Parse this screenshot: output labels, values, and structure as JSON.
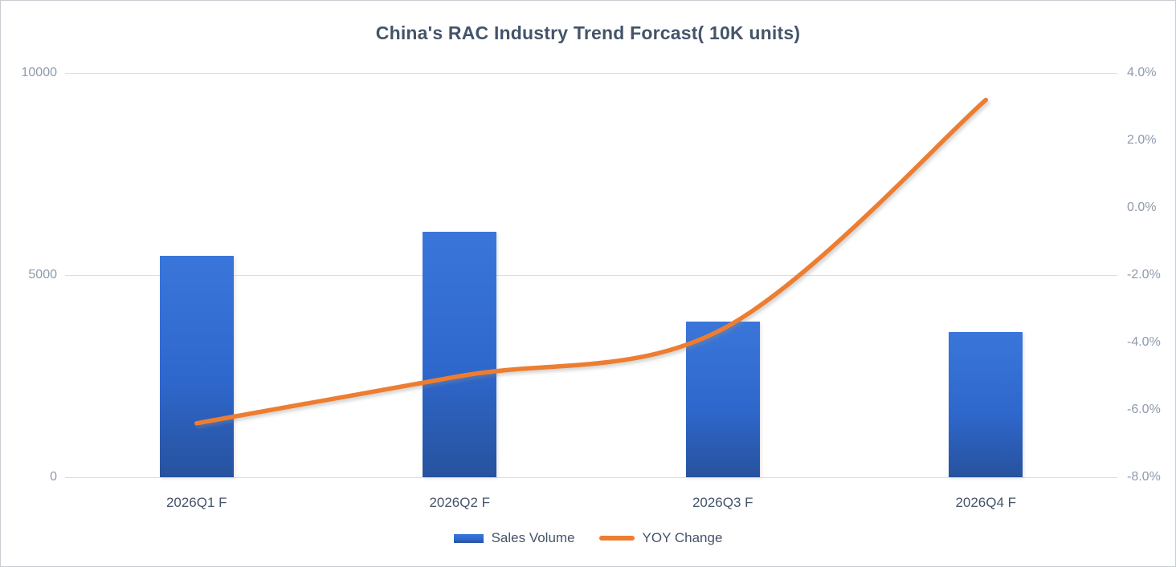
{
  "title": "China's RAC Industry Trend Forcast( 10K units)",
  "chart_data": {
    "type": "bar",
    "subtype": "combo-bar-line-dual-axis",
    "title": "China's RAC Industry Trend Forcast( 10K units)",
    "categories": [
      "2026Q1 F",
      "2026Q2 F",
      "2026Q3 F",
      "2026Q4 F"
    ],
    "series": [
      {
        "name": "Sales Volume",
        "type": "bar",
        "axis": "left",
        "unit": "10K units",
        "values": [
          5480,
          6070,
          3850,
          3590
        ],
        "color": "#2F68CD"
      },
      {
        "name": "YOY Change",
        "type": "line",
        "axis": "right",
        "unit": "percent",
        "values": [
          -6.4,
          -5.0,
          -3.6,
          3.2
        ],
        "color": "#ED7D31",
        "smooth": true
      }
    ],
    "left_axis": {
      "min": 0,
      "max": 10000,
      "tick_values": [
        10000,
        5000,
        0
      ],
      "tick_labels": [
        "10000",
        "5000",
        "0"
      ]
    },
    "right_axis": {
      "min": -8,
      "max": 4,
      "tick_step": 2,
      "tick_labels": [
        "4.0%",
        "2.0%",
        "0.0%",
        "-2.0%",
        "-4.0%",
        "-6.0%",
        "-8.0%"
      ]
    },
    "legend": {
      "position": "bottom",
      "items": [
        "Sales Volume",
        "YOY Change"
      ]
    },
    "grid": {
      "horizontal_lines_at_left_axis_values": [
        10000,
        5000,
        0
      ]
    }
  },
  "colors": {
    "bar_gradient_top": "#3A76DA",
    "bar_gradient_bottom": "#27529E",
    "line": "#ED7D31",
    "gridline": "#DCDEE1",
    "title_text": "#44546A",
    "y_tick_text": "#8E9AAB",
    "x_tick_text": "#44546A",
    "legend_text": "#44546A",
    "background": "#FFFFFF"
  }
}
